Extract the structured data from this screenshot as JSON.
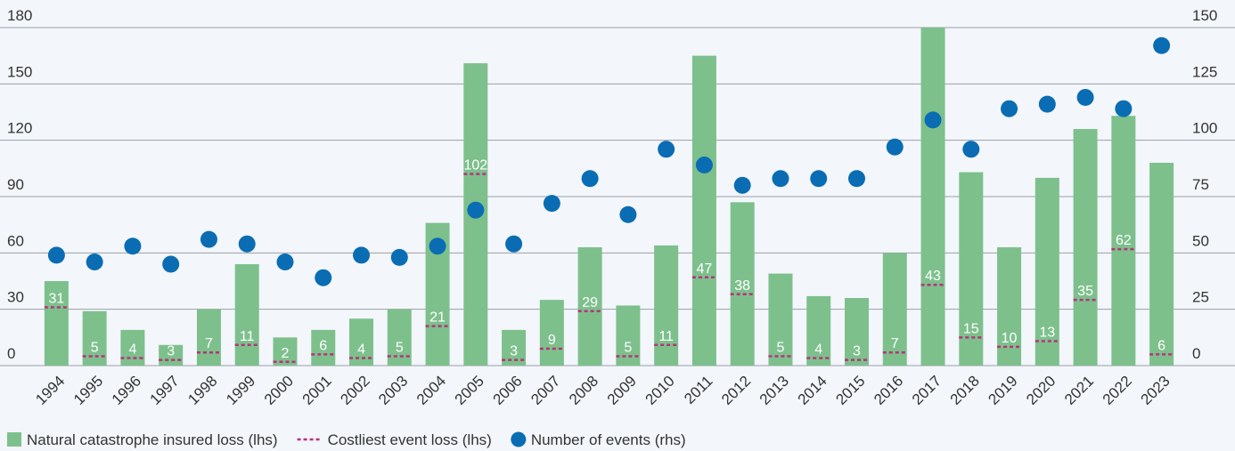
{
  "chart_data": {
    "type": "combo",
    "categories": [
      "1994",
      "1995",
      "1996",
      "1997",
      "1998",
      "1999",
      "2000",
      "2001",
      "2002",
      "2003",
      "2004",
      "2005",
      "2006",
      "2007",
      "2008",
      "2009",
      "2010",
      "2011",
      "2012",
      "2013",
      "2014",
      "2015",
      "2016",
      "2017",
      "2018",
      "2019",
      "2020",
      "2021",
      "2022",
      "2023"
    ],
    "series": [
      {
        "name": "Natural catastrophe insured loss (lhs)",
        "type": "bar",
        "color": "#7dc08c",
        "values": [
          45,
          29,
          19,
          11,
          30,
          54,
          15,
          19,
          25,
          30,
          76,
          161,
          19,
          35,
          63,
          32,
          64,
          165,
          87,
          49,
          37,
          36,
          60,
          180,
          103,
          63,
          100,
          126,
          133,
          108
        ]
      },
      {
        "name": "Costliest event loss (lhs)",
        "type": "dash",
        "color": "#b8327c",
        "values": [
          31,
          5,
          4,
          3,
          7,
          11,
          2,
          6,
          4,
          5,
          21,
          102,
          3,
          9,
          29,
          5,
          11,
          47,
          38,
          5,
          4,
          3,
          7,
          43,
          15,
          10,
          13,
          35,
          62,
          6
        ]
      },
      {
        "name": "Number of events (rhs)",
        "type": "scatter",
        "color": "#0a6db3",
        "axis": "y2",
        "values": [
          49,
          46,
          53,
          45,
          56,
          54,
          46,
          39,
          49,
          48,
          53,
          69,
          54,
          72,
          83,
          67,
          96,
          89,
          80,
          83,
          83,
          83,
          97,
          109,
          96,
          114,
          116,
          119,
          114,
          142
        ]
      }
    ],
    "ylim": [
      0,
      180
    ],
    "yticks": [
      0,
      30,
      60,
      90,
      120,
      150,
      180
    ],
    "y2lim": [
      0,
      150
    ],
    "y2ticks": [
      0,
      25,
      50,
      75,
      100,
      125,
      150
    ],
    "grid": true,
    "legend": "bottom"
  }
}
